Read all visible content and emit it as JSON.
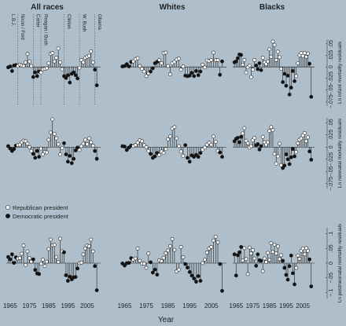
{
  "chart_data": {
    "type": "scatter",
    "columns": [
      "All races",
      "Whites",
      "Blacks"
    ],
    "rows": [
      {
        "key": "infant",
        "ylabel": "Ln infant mortality residuals",
        "yticks": [
          -0.075,
          -0.05,
          -0.025,
          0,
          0.025,
          0.05
        ],
        "ytick_labels": [
          "−.075",
          "−.05",
          "−.025",
          "0",
          ".025",
          ".05"
        ],
        "ylim": [
          -0.085,
          0.06
        ]
      },
      {
        "key": "neonatal",
        "ylabel": "Ln neonatal mortality residuals",
        "yticks": [
          -0.075,
          -0.05,
          -0.025,
          0,
          0.025,
          0.05
        ],
        "ytick_labels": [
          "−.075",
          "−.05",
          "−.025",
          "0",
          ".025",
          ".05"
        ],
        "ylim": [
          -0.085,
          0.06
        ]
      },
      {
        "key": "postneonatal",
        "ylabel": "Ln postneonatal mortality residuals",
        "yticks": [
          -0.1,
          -0.05,
          0,
          0.05,
          0.1
        ],
        "ytick_labels": [
          "−.1",
          "−.05",
          "0",
          ".05",
          ".1"
        ],
        "ylim": [
          -0.12,
          0.12
        ]
      }
    ],
    "xlabel": "Year",
    "xticks": [
      1965,
      1975,
      1985,
      1995,
      2005
    ],
    "xlim": [
      1963,
      2012
    ],
    "president_markers": [
      {
        "label": "L.B.J.",
        "year": 1965
      },
      {
        "label": "Nixon / Ford",
        "year": 1970
      },
      {
        "label": "Carter",
        "year": 1978
      },
      {
        "label": "Reagan / Bush",
        "year": 1982
      },
      {
        "label": "Clinton",
        "year": 1994
      },
      {
        "label": "W. Bush",
        "year": 2002
      },
      {
        "label": "Obama",
        "year": 2010
      }
    ],
    "term_boundaries": [
      1969,
      1977,
      1981,
      1993,
      2001,
      2009
    ],
    "legend": {
      "republican": "Republican president",
      "democratic": "Democratic president"
    },
    "years": [
      1964,
      1965,
      1966,
      1967,
      1968,
      1969,
      1970,
      1971,
      1972,
      1973,
      1974,
      1975,
      1976,
      1977,
      1978,
      1979,
      1980,
      1981,
      1982,
      1983,
      1984,
      1985,
      1986,
      1987,
      1988,
      1989,
      1990,
      1991,
      1992,
      1993,
      1994,
      1995,
      1996,
      1997,
      1998,
      1999,
      2000,
      2001,
      2002,
      2003,
      2004,
      2005,
      2006,
      2007,
      2008,
      2009,
      2010
    ],
    "party": [
      "D",
      "D",
      "D",
      "D",
      "D",
      "R",
      "R",
      "R",
      "R",
      "R",
      "R",
      "R",
      "R",
      "D",
      "D",
      "D",
      "D",
      "R",
      "R",
      "R",
      "R",
      "R",
      "R",
      "R",
      "R",
      "R",
      "R",
      "R",
      "R",
      "D",
      "D",
      "D",
      "D",
      "D",
      "D",
      "D",
      "D",
      "R",
      "R",
      "R",
      "R",
      "R",
      "R",
      "R",
      "R",
      "D",
      "D"
    ],
    "panels": [
      {
        "row": 0,
        "col": 0,
        "values": [
          -0.001,
          0.001,
          -0.009,
          0.003,
          0.004,
          0.002,
          0.005,
          0.003,
          0.002,
          0.01,
          0.028,
          0.012,
          0.002,
          -0.022,
          -0.012,
          -0.02,
          -0.01,
          -0.012,
          -0.005,
          -0.004,
          -0.003,
          0.008,
          0.028,
          0.03,
          0.012,
          0.02,
          0.04,
          0.01,
          -0.005,
          -0.02,
          -0.024,
          -0.018,
          -0.034,
          -0.015,
          -0.012,
          -0.018,
          -0.025,
          -0.002,
          0.015,
          0.01,
          0.02,
          0.022,
          0.024,
          0.034,
          0.01,
          -0.006,
          -0.04
        ]
      },
      {
        "row": 0,
        "col": 1,
        "values": [
          0.001,
          0.002,
          0.006,
          0.001,
          0.011,
          0.012,
          0.017,
          0.019,
          0.002,
          -0.004,
          -0.01,
          -0.02,
          -0.014,
          -0.01,
          -0.003,
          0.008,
          0.011,
          0.015,
          0.008,
          0.03,
          0.031,
          0.002,
          -0.016,
          0.008,
          0.011,
          0.016,
          0.018,
          -0.006,
          0.001,
          -0.019,
          -0.02,
          -0.019,
          -0.013,
          -0.02,
          -0.009,
          -0.018,
          -0.01,
          0.005,
          -0.001,
          0.014,
          0.013,
          0.015,
          0.031,
          0.015,
          0.015,
          -0.017,
          0.012
        ]
      },
      {
        "row": 0,
        "col": 2,
        "values": [
          0.01,
          0.012,
          0.019,
          0.027,
          0.026,
          0.005,
          0.015,
          -0.012,
          -0.001,
          0.003,
          -0.022,
          -0.006,
          0.015,
          0.003,
          -0.005,
          0.008,
          -0.007,
          0.02,
          0.01,
          0.006,
          0.012,
          0.038,
          0.022,
          0.055,
          0.048,
          0.015,
          0.033,
          0.021,
          -0.004,
          -0.033,
          -0.015,
          -0.041,
          -0.019,
          -0.06,
          -0.045,
          -0.009,
          -0.031,
          -0.02,
          0.008,
          0.025,
          0.03,
          0.024,
          0.03,
          0.022,
          0.029,
          0.007,
          -0.065
        ]
      },
      {
        "row": 1,
        "col": 0,
        "values": [
          0.002,
          -0.003,
          -0.008,
          -0.004,
          0.003,
          0.004,
          0.005,
          0.01,
          0.013,
          0.012,
          0.007,
          0.0,
          -0.008,
          -0.014,
          -0.022,
          -0.008,
          -0.02,
          -0.003,
          -0.015,
          -0.01,
          -0.011,
          0.015,
          0.03,
          0.057,
          0.027,
          0.018,
          0.006,
          -0.015,
          -0.002,
          0.008,
          -0.015,
          -0.03,
          -0.018,
          -0.033,
          -0.024,
          -0.007,
          -0.001,
          -0.006,
          0.002,
          0.007,
          0.015,
          0.006,
          0.018,
          0.01,
          0.003,
          -0.008,
          -0.024
        ]
      },
      {
        "row": 1,
        "col": 1,
        "values": [
          0.002,
          0.001,
          -0.006,
          -0.001,
          0.003,
          0.002,
          0.004,
          0.009,
          0.014,
          0.012,
          0.004,
          0.0,
          -0.008,
          -0.014,
          -0.022,
          -0.019,
          -0.012,
          -0.016,
          -0.009,
          -0.012,
          -0.004,
          0.016,
          0.022,
          0.038,
          0.041,
          0.018,
          0.002,
          -0.009,
          -0.018,
          0.004,
          -0.022,
          -0.03,
          -0.017,
          -0.02,
          -0.016,
          -0.02,
          -0.012,
          -0.005,
          -0.001,
          0.005,
          0.009,
          0.005,
          0.022,
          0.011,
          -0.008,
          -0.011,
          -0.02
        ]
      },
      {
        "row": 1,
        "col": 2,
        "values": [
          0.012,
          0.017,
          0.019,
          0.01,
          0.021,
          0.028,
          0.039,
          0.013,
          0.008,
          -0.001,
          0.002,
          0.014,
          0.019,
          0.004,
          0.006,
          -0.005,
          0.002,
          0.021,
          0.01,
          0.005,
          0.01,
          0.033,
          0.041,
          0.035,
          -0.014,
          -0.034,
          -0.019,
          0.007,
          -0.037,
          -0.043,
          -0.038,
          -0.015,
          -0.025,
          -0.035,
          -0.021,
          -0.004,
          -0.019,
          -0.01,
          0.008,
          0.015,
          0.018,
          0.024,
          0.029,
          0.012,
          0.02,
          -0.009,
          -0.026
        ]
      },
      {
        "row": 2,
        "col": 0,
        "values": [
          0.021,
          0.013,
          0.03,
          0.001,
          0.02,
          0.016,
          0.017,
          0.032,
          0.06,
          -0.006,
          0.04,
          0.017,
          0.005,
          0.013,
          -0.023,
          -0.035,
          -0.037,
          -0.002,
          0.012,
          -0.01,
          0.005,
          0.048,
          0.08,
          0.061,
          0.062,
          0.021,
          0.004,
          0.083,
          0.04,
          0.037,
          -0.041,
          -0.06,
          -0.046,
          -0.055,
          -0.048,
          -0.047,
          -0.018,
          0.0,
          0.002,
          0.03,
          0.05,
          0.06,
          0.058,
          0.08,
          0.04,
          -0.01,
          -0.092
        ]
      },
      {
        "row": 2,
        "col": 1,
        "values": [
          -0.001,
          -0.008,
          0.0,
          0.001,
          0.017,
          0.012,
          0.016,
          0.05,
          0.008,
          -0.001,
          -0.002,
          -0.016,
          0.033,
          0.003,
          -0.032,
          -0.022,
          -0.039,
          0.01,
          0.007,
          0.018,
          0.034,
          0.043,
          0.058,
          0.082,
          0.045,
          -0.028,
          -0.022,
          0.055,
          0.02,
          -0.003,
          -0.015,
          -0.03,
          -0.042,
          -0.052,
          -0.063,
          -0.044,
          -0.06,
          0.0,
          0.012,
          0.036,
          0.05,
          0.055,
          0.077,
          0.09,
          0.071,
          -0.003,
          -0.094
        ]
      },
      {
        "row": 2,
        "col": 2,
        "values": [
          0.03,
          -0.042,
          0.027,
          0.037,
          0.055,
          0.009,
          0.051,
          0.014,
          -0.037,
          0.053,
          0.033,
          0.044,
          0.016,
          -0.009,
          0.03,
          0.01,
          0.008,
          -0.027,
          0.016,
          0.004,
          0.035,
          0.011,
          0.068,
          0.038,
          0.063,
          0.033,
          0.057,
          0.014,
          0.027,
          0.008,
          -0.016,
          -0.04,
          -0.056,
          -0.01,
          0.026,
          -0.034,
          -0.072,
          -0.016,
          0.026,
          0.015,
          0.042,
          0.05,
          0.03,
          0.051,
          0.042,
          0.013,
          -0.079
        ]
      }
    ]
  }
}
